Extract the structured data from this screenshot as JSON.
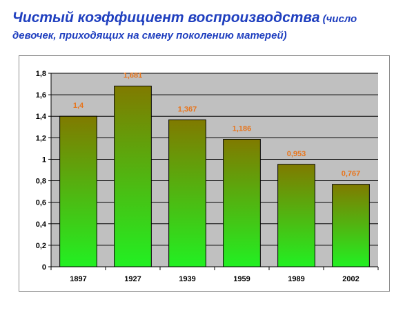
{
  "title": {
    "main": "Чистый коэффициент воспроизводства",
    "sub_line1": " (число",
    "sub_line2": "девочек, приходящих на смену поколению матерей)"
  },
  "colors": {
    "title": "#1f3fbf",
    "bar_top": "#807a00",
    "bar_bottom": "#22f022",
    "data_label": "#e8741a",
    "plot_bg": "#c0c0c0",
    "gridline": "#000000"
  },
  "chart_data": {
    "type": "bar",
    "categories": [
      "1897",
      "1927",
      "1939",
      "1959",
      "1989",
      "2002"
    ],
    "values": [
      1.4,
      1.681,
      1.367,
      1.186,
      0.953,
      0.767
    ],
    "data_labels": [
      "1,4",
      "1,681",
      "1,367",
      "1,186",
      "0,953",
      "0,767"
    ],
    "y_ticks": [
      "0",
      "0,2",
      "0,4",
      "0,6",
      "0,8",
      "1",
      "1,2",
      "1,4",
      "1,6",
      "1,8"
    ],
    "ylim": [
      0,
      1.8
    ],
    "y_step": 0.2,
    "grid": true,
    "legend": "none"
  }
}
